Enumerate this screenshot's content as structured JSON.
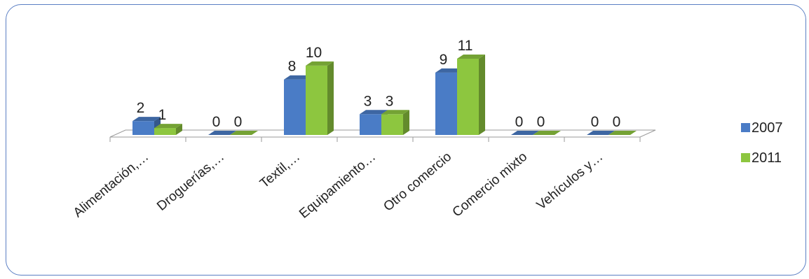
{
  "chart_data": {
    "type": "bar",
    "categories": [
      "Alimentación,…",
      "Droguerías,…",
      "Textil,…",
      "Equipamiento…",
      "Otro comercio",
      "Comercio mixto",
      "Vehículos y…"
    ],
    "series": [
      {
        "name": "2007",
        "values": [
          2,
          0,
          8,
          3,
          9,
          0,
          0
        ],
        "color": "#4a7cc6"
      },
      {
        "name": "2011",
        "values": [
          1,
          0,
          10,
          3,
          11,
          0,
          0
        ],
        "color": "#8dc63f"
      }
    ],
    "ylim": [
      0,
      11
    ],
    "grid": false,
    "legend": "right",
    "three_d": true
  }
}
